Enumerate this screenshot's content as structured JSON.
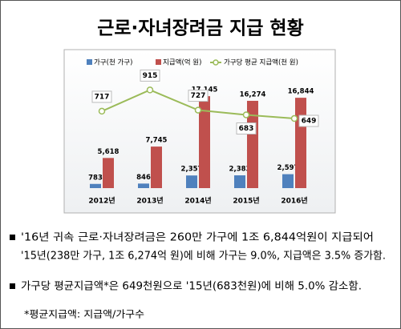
{
  "chart_data": {
    "type": "bar-line",
    "title": "근로·자녀장려금 지급 현황",
    "categories": [
      "2012년",
      "2013년",
      "2014년",
      "2015년",
      "2016년"
    ],
    "series": [
      {
        "name": "가구(천 가구)",
        "type": "bar",
        "color": "#4f81bd",
        "values": [
          783,
          846,
          2357,
          2383,
          2597
        ],
        "value_labels": [
          "783",
          "846",
          "2,357",
          "2,383",
          "2,597"
        ]
      },
      {
        "name": "지급액(억 원)",
        "type": "bar",
        "color": "#c0504d",
        "values": [
          5618,
          7745,
          17145,
          16274,
          16844
        ],
        "value_labels": [
          "5,618",
          "7,745",
          "17,145",
          "16,274",
          "16,844"
        ]
      },
      {
        "name": "가구당 평균 지급액(천 원)",
        "type": "line",
        "axis": "y2",
        "color": "#9bbb59",
        "values": [
          717,
          915,
          727,
          683,
          649
        ]
      }
    ],
    "ylim": [
      0,
      20000
    ],
    "y2lim": [
      0,
      1000
    ],
    "legend": "top"
  },
  "notes": [
    {
      "lines": [
        "'16년 귀속 근로·자녀장려금은 260만 가구에 1조 6,844억원이 지급되어",
        "'15년(238만 가구, 1조 6,274억 원)에 비해 가구는 9.0%, 지급액은 3.5% 증가함."
      ]
    },
    {
      "lines": [
        "가구당 평균지급액*은 649천원으로 '15년(683천원)에 비해 5.0% 감소함."
      ]
    }
  ],
  "footnote": "*평균지급액: 지급액/가구수"
}
